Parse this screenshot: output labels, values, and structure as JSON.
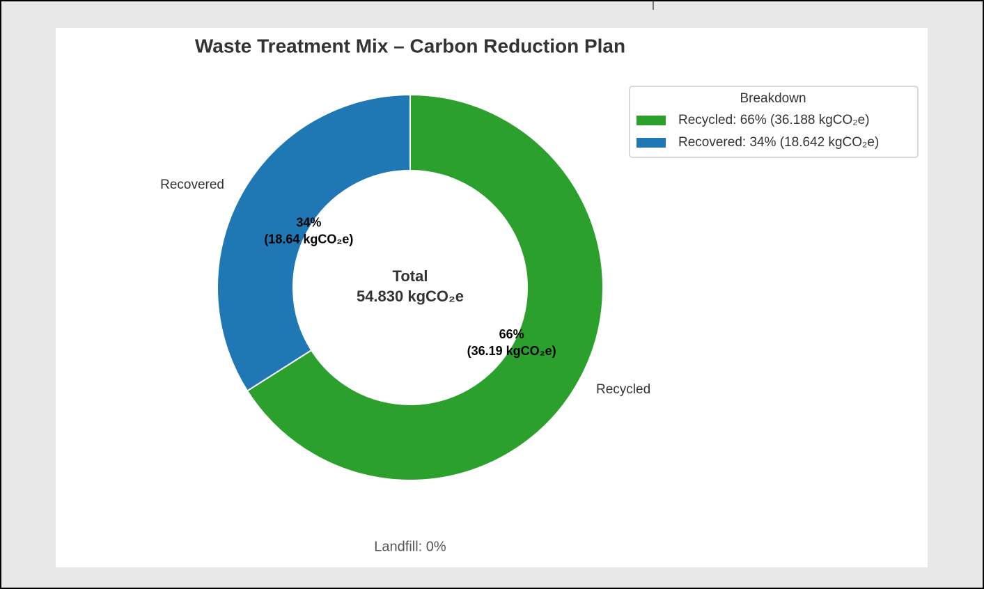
{
  "chart_data": {
    "type": "donut",
    "title": "Waste Treatment Mix – Carbon Reduction Plan",
    "categories": [
      "Recycled",
      "Recovered"
    ],
    "values": [
      66,
      34
    ],
    "value_labels": [
      "66%",
      "34%"
    ],
    "amounts": [
      36.188,
      18.642
    ],
    "amount_labels": [
      "(36.19 kgCO₂e)",
      "(18.64 kgCO₂e)"
    ],
    "colors": [
      "#2ca02c",
      "#1f77b4"
    ],
    "start_angle": 90,
    "clockwise": true,
    "legend": {
      "title": "Breakdown",
      "position": "upper right",
      "labels": [
        "Recycled: 66% (36.188 kgCO₂e)",
        "Recovered: 34% (18.642 kgCO₂e)"
      ]
    },
    "center_title": "Total",
    "center_label": "54.830 kgCO₂e",
    "annotation": "Landfill: 0%"
  }
}
